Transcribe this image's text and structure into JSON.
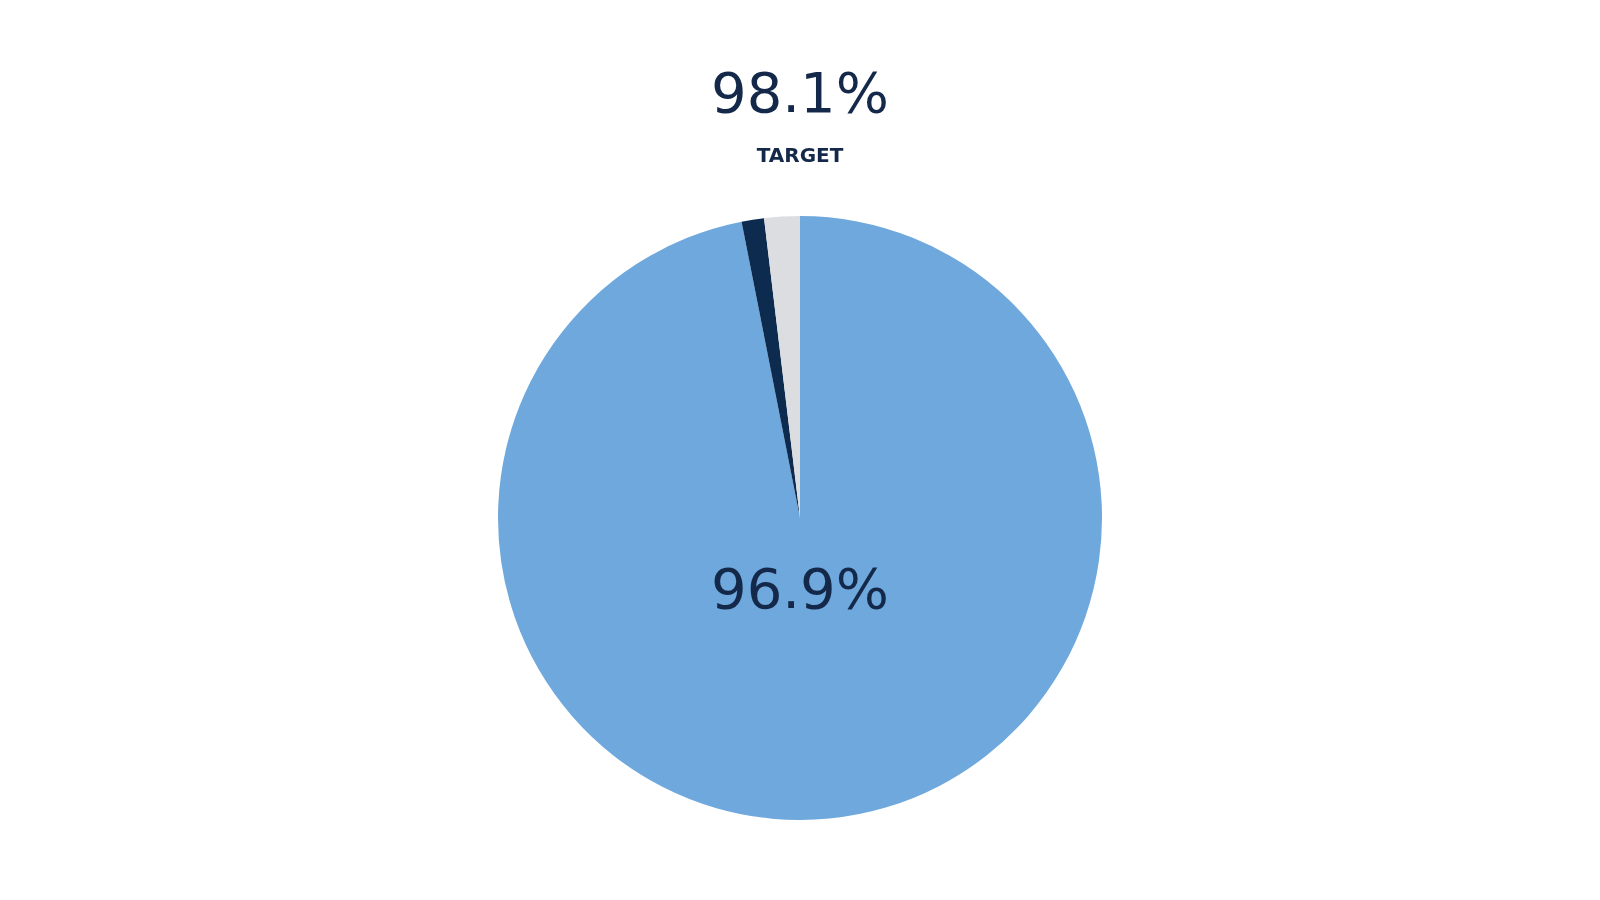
{
  "chart_data": {
    "type": "pie",
    "categories": [
      null,
      null,
      null
    ],
    "values": [
      96.9,
      1.2,
      1.9
    ],
    "colors": [
      "#6fa8dc",
      "#0d2a4f",
      "#dcdde1"
    ],
    "value_labels": [
      "96.9%",
      null,
      null
    ],
    "annotations": [
      "98.1%",
      "TARGET"
    ],
    "legend": false
  }
}
